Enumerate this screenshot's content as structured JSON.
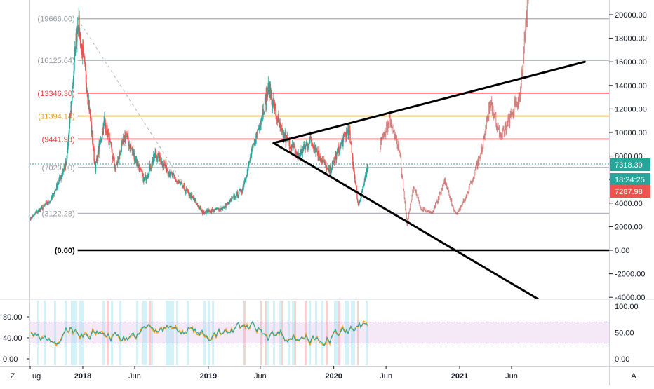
{
  "chart_data": {
    "type": "line",
    "title": "",
    "price_axis": {
      "min": -4000,
      "max": 21000,
      "ticks": [
        20000,
        18000,
        16000,
        14000,
        12000,
        10000,
        8000,
        6000,
        4000,
        2000,
        0,
        -2000,
        -4000
      ],
      "tick_labels": [
        "20000.00",
        "18000.00",
        "16000.00",
        "14000.00",
        "12000.00",
        "10000.00",
        "8000.00",
        "6000.00",
        "4000.00",
        "2000.00",
        "0.00",
        "-2000.00",
        "-4000.00"
      ]
    },
    "time_axis": {
      "range": [
        "2017-08-01",
        "2021-12-31"
      ],
      "ticks": [
        "2017-08-01",
        "2018-01-01",
        "2018-06-01",
        "2019-01-01",
        "2019-06-01",
        "2020-01-01",
        "2020-06-01",
        "2021-01-01",
        "2021-06-01"
      ],
      "tick_labels": [
        "ug",
        "2018",
        "Jun",
        "2019",
        "Jun",
        "2020",
        "Jun",
        "2021",
        "Jun"
      ]
    },
    "fib_levels": [
      {
        "value": 19666.0,
        "label": "(19666.00)",
        "color": "#b2b5be",
        "label_color": "#9598a1"
      },
      {
        "value": 16125.64,
        "label": "(16125.64)",
        "color": "#b2b5be",
        "label_color": "#9598a1"
      },
      {
        "value": 13346.3,
        "label": "(13346.30)",
        "color": "#ef5350",
        "label_color": "#e04040"
      },
      {
        "value": 11394.14,
        "label": "(11394.14)",
        "color": "#f5a623",
        "label_color": "#f0a020"
      },
      {
        "value": 9441.98,
        "label": "(9441.98)",
        "color": "#ef5350",
        "label_color": "#e04040"
      },
      {
        "value": 7029.0,
        "label": "(7029.00)",
        "color": "#b2b5be",
        "label_color": "#9598a1"
      },
      {
        "value": 3122.28,
        "label": "(3122.28)",
        "color": "#b2b5be",
        "label_color": "#9598a1"
      },
      {
        "value": 0.0,
        "label": "(0.00)",
        "color": "#000000",
        "label_color": "#000000"
      }
    ],
    "price_series": {
      "name": "",
      "x": [
        "2017-08-01",
        "2017-10-01",
        "2017-11-15",
        "2017-12-17",
        "2018-01-15",
        "2018-02-06",
        "2018-03-05",
        "2018-04-06",
        "2018-05-05",
        "2018-06-29",
        "2018-08-01",
        "2018-09-15",
        "2018-11-20",
        "2018-12-15",
        "2019-02-15",
        "2019-04-10",
        "2019-06-26",
        "2019-08-01",
        "2019-09-20",
        "2019-10-26",
        "2019-12-18",
        "2020-02-13",
        "2020-03-12",
        "2020-04-10"
      ],
      "y": [
        2700,
        4300,
        7500,
        19666,
        13500,
        7000,
        11000,
        6900,
        9800,
        5900,
        8200,
        6400,
        4300,
        3200,
        3600,
        5200,
        13800,
        10000,
        8000,
        9400,
        6600,
        10400,
        3800,
        7000
      ]
    },
    "projection_series": {
      "name": "",
      "x": [
        "2020-05-15",
        "2020-06-10",
        "2020-07-10",
        "2020-08-01",
        "2020-08-20",
        "2020-09-10",
        "2020-10-15",
        "2020-11-20",
        "2020-12-20",
        "2021-01-20",
        "2021-03-01",
        "2021-04-01",
        "2021-05-01",
        "2021-06-01",
        "2021-06-25",
        "2021-07-10",
        "2021-07-20"
      ],
      "y": [
        9000,
        11000,
        8500,
        2200,
        5500,
        3500,
        3200,
        5900,
        3000,
        4500,
        8000,
        12500,
        9500,
        11500,
        13200,
        18000,
        21500
      ]
    },
    "current_price_labels": [
      {
        "value": 7318.39,
        "label": "7318.39",
        "color": "#26a69a"
      },
      {
        "value": 0,
        "label": "18:24:25",
        "color": "#26a69a"
      },
      {
        "value": 7287.98,
        "label": "7287.98",
        "color": "#ef5350"
      }
    ],
    "triangle_lines": [
      {
        "x1": "2019-07-10",
        "y1": 9100,
        "x2": "2021-12-31",
        "y2": 16000
      },
      {
        "x1": "2019-07-10",
        "y1": 9100,
        "x2": "2021-08-20",
        "y2": -4200
      }
    ],
    "oscillator": {
      "axis_ticks": [
        100,
        50,
        0
      ],
      "axis_labels": [
        "100.00",
        "50.00",
        "0.00"
      ],
      "left_labels": [
        "80.00",
        "40.00",
        "0.00"
      ],
      "band_upper": 70,
      "band_lower": 30,
      "band_color": "#e1bee7"
    },
    "legend": "none",
    "grid": false
  },
  "bottom_bar": {
    "left_button": "Z",
    "right_button": "A"
  }
}
